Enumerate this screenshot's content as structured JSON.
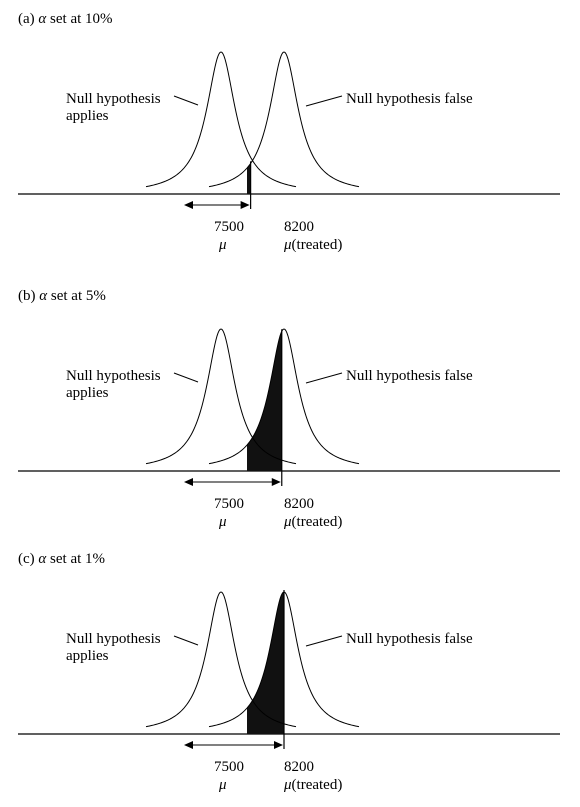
{
  "panels": [
    {
      "title_prefix": "(a) ",
      "alpha_symbol": "α",
      "title_suffix": " set at 10%",
      "null_applies_line1": "Null hypothesis",
      "null_applies_line2": "applies",
      "null_false": "Null hypothesis false",
      "mu_null_value": "7500",
      "mu_treated_value": "8200",
      "mu_symbol": "μ",
      "mu_treated_suffix": "(treated)",
      "critical_fraction": 0.1
    },
    {
      "title_prefix": "(b) ",
      "alpha_symbol": "α",
      "title_suffix": " set at 5%",
      "null_applies_line1": "Null hypothesis",
      "null_applies_line2": "applies",
      "null_false": "Null hypothesis false",
      "mu_null_value": "7500",
      "mu_treated_value": "8200",
      "mu_symbol": "μ",
      "mu_treated_suffix": "(treated)",
      "critical_fraction": 0.05
    },
    {
      "title_prefix": "(c) ",
      "alpha_symbol": "α",
      "title_suffix": " set at 1%",
      "null_applies_line1": "Null hypothesis",
      "null_applies_line2": "applies",
      "null_false": "Null hypothesis false",
      "mu_null_value": "7500",
      "mu_treated_value": "8200",
      "mu_symbol": "μ",
      "mu_treated_suffix": "(treated)",
      "critical_fraction": 0.01
    }
  ],
  "colors": {
    "ink": "#000000",
    "shade": "#111111",
    "background": "#ffffff"
  }
}
